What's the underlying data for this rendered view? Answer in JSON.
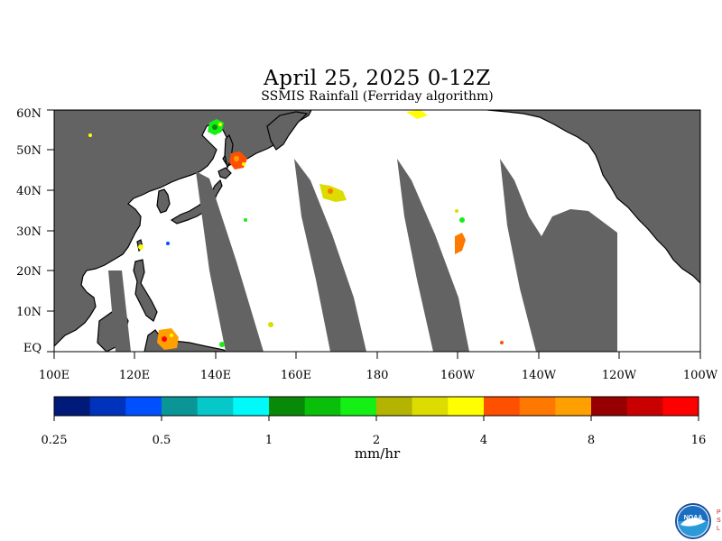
{
  "title": "April 25, 2025 0-12Z",
  "subtitle": "SSMIS Rainfall (Ferriday algorithm)",
  "lat_labels": [
    "60N",
    "50N",
    "40N",
    "30N",
    "20N",
    "10N",
    "EQ"
  ],
  "lon_labels": [
    "100E",
    "120E",
    "140E",
    "160E",
    "180",
    "160W",
    "140W",
    "120W",
    "100W"
  ],
  "colorbar": {
    "colors": [
      "#001a7a",
      "#0033bb",
      "#0050ff",
      "#0a9696",
      "#06c8c8",
      "#00fafa",
      "#088a08",
      "#0abf0a",
      "#14f014",
      "#b4b400",
      "#dcdc00",
      "#ffff00",
      "#ff5000",
      "#ff7800",
      "#ffa000",
      "#960000",
      "#c80000",
      "#ff0000"
    ],
    "tick_labels": [
      "0.25",
      "0.5",
      "1",
      "2",
      "4",
      "8",
      "16"
    ],
    "units": "mm/hr"
  },
  "colors": {
    "land": "#636363",
    "no_data": "#636363",
    "ocean_observed": "#ffffff"
  },
  "logo": {
    "name": "NOAA",
    "side_text": "PSL"
  }
}
